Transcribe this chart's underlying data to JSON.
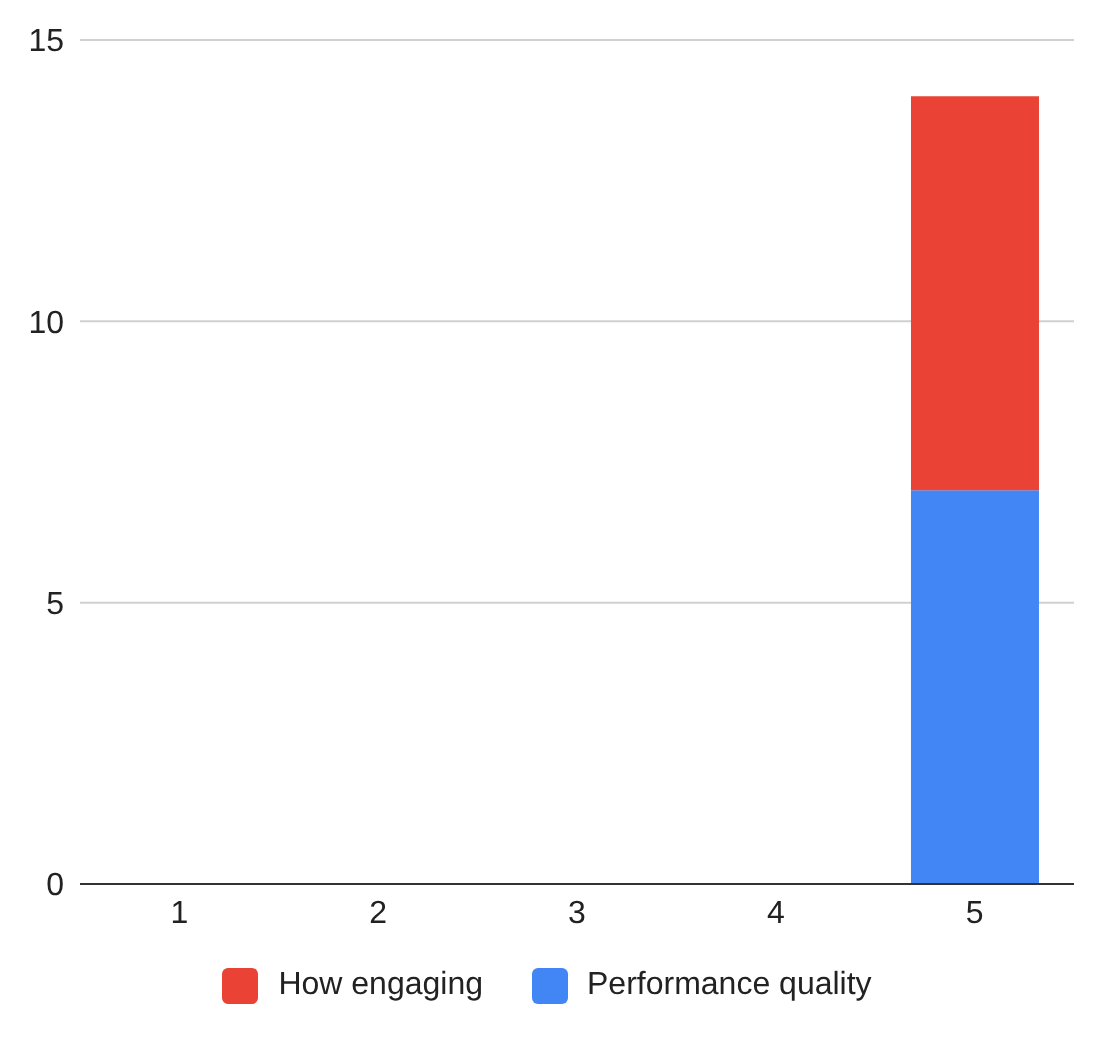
{
  "chart_data": {
    "type": "bar",
    "stacked": true,
    "categories": [
      "1",
      "2",
      "3",
      "4",
      "5"
    ],
    "series": [
      {
        "name": "Performance quality",
        "color": "#4285f4",
        "values": [
          0,
          0,
          0,
          0,
          7
        ]
      },
      {
        "name": "How engaging",
        "color": "#ea4335",
        "values": [
          0,
          0,
          0,
          0,
          7
        ]
      }
    ],
    "ylim": [
      0,
      15
    ],
    "yticks": [
      0,
      5,
      10,
      15
    ],
    "grid": "y",
    "legend": "bottom"
  }
}
